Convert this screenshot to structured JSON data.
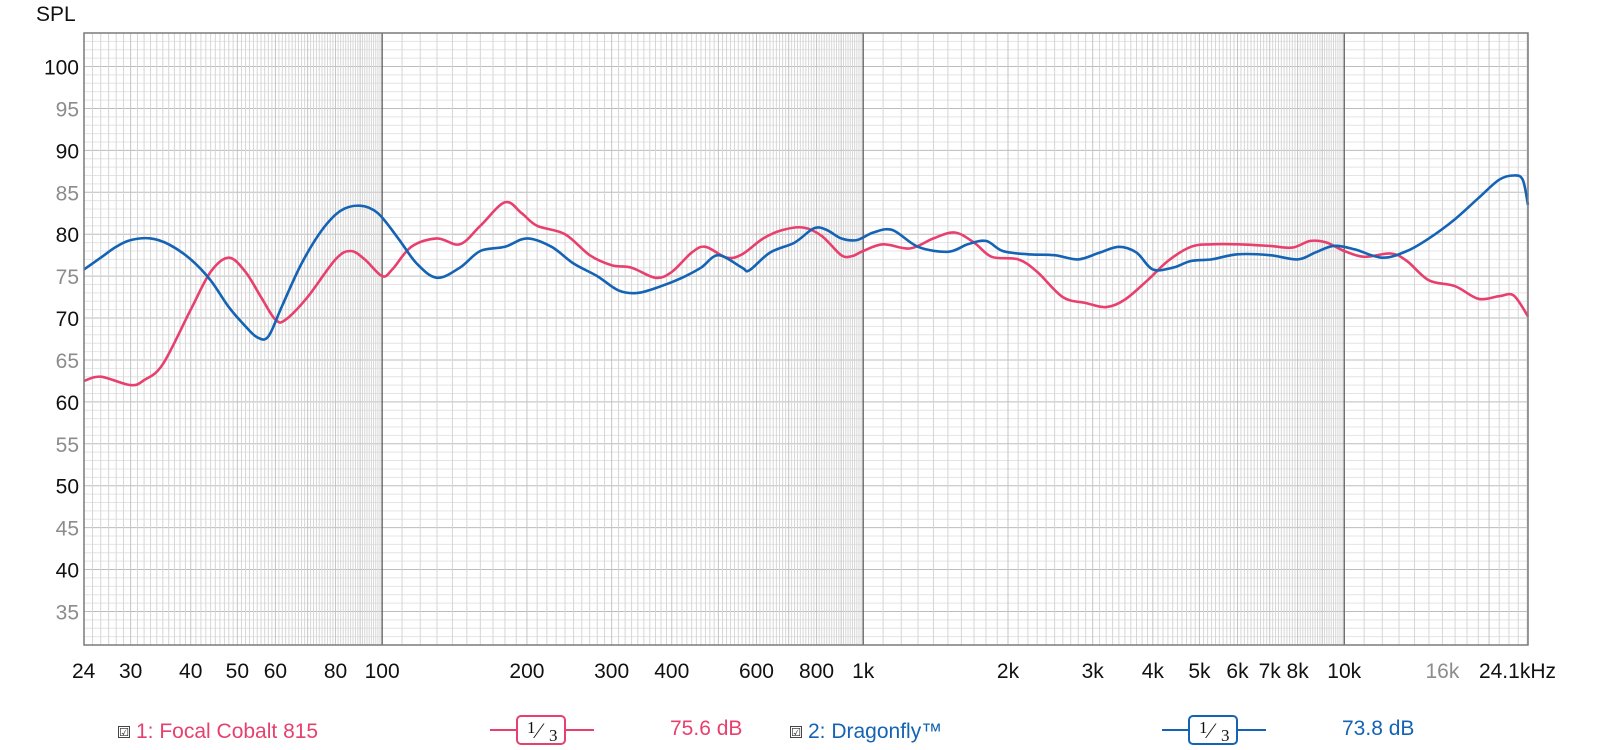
{
  "colors": {
    "series1": "#e8406e",
    "series2": "#1463b4",
    "grid_major": "#6e6e6e",
    "grid_minor": "#d6d6d6"
  },
  "chart_data": {
    "type": "line",
    "ylabel": "SPL",
    "ylim": [
      31,
      104
    ],
    "xlim": [
      24,
      24100
    ],
    "x_scale": "log",
    "x_ticks": [
      {
        "f": 24,
        "label": "24"
      },
      {
        "f": 30,
        "label": "30"
      },
      {
        "f": 40,
        "label": "40"
      },
      {
        "f": 50,
        "label": "50"
      },
      {
        "f": 60,
        "label": "60"
      },
      {
        "f": 80,
        "label": "80"
      },
      {
        "f": 100,
        "label": "100"
      },
      {
        "f": 200,
        "label": "200"
      },
      {
        "f": 300,
        "label": "300"
      },
      {
        "f": 400,
        "label": "400"
      },
      {
        "f": 600,
        "label": "600"
      },
      {
        "f": 800,
        "label": "800"
      },
      {
        "f": 1000,
        "label": "1k"
      },
      {
        "f": 2000,
        "label": "2k"
      },
      {
        "f": 3000,
        "label": "3k"
      },
      {
        "f": 4000,
        "label": "4k"
      },
      {
        "f": 5000,
        "label": "5k"
      },
      {
        "f": 6000,
        "label": "6k"
      },
      {
        "f": 7000,
        "label": "7k"
      },
      {
        "f": 8000,
        "label": "8k"
      },
      {
        "f": 10000,
        "label": "10k"
      },
      {
        "f": 16000,
        "label": "16k",
        "minor": true
      },
      {
        "f": 24100,
        "label": "24.1kHz"
      }
    ],
    "y_ticks": [
      {
        "v": 100,
        "label": "100"
      },
      {
        "v": 95,
        "label": "95",
        "minor": true
      },
      {
        "v": 90,
        "label": "90"
      },
      {
        "v": 85,
        "label": "85",
        "minor": true
      },
      {
        "v": 80,
        "label": "80"
      },
      {
        "v": 75,
        "label": "75",
        "minor": true
      },
      {
        "v": 70,
        "label": "70"
      },
      {
        "v": 65,
        "label": "65",
        "minor": true
      },
      {
        "v": 60,
        "label": "60"
      },
      {
        "v": 55,
        "label": "55",
        "minor": true
      },
      {
        "v": 50,
        "label": "50"
      },
      {
        "v": 45,
        "label": "45",
        "minor": true
      },
      {
        "v": 40,
        "label": "40"
      },
      {
        "v": 35,
        "label": "35",
        "minor": true
      }
    ],
    "series": [
      {
        "name": "1: Focal Cobalt 815",
        "smoothing": "1/3",
        "average": "75.6 dB",
        "points": [
          [
            24,
            62.5
          ],
          [
            26,
            63
          ],
          [
            30,
            62
          ],
          [
            32,
            62.6
          ],
          [
            35,
            64.5
          ],
          [
            40,
            71
          ],
          [
            44,
            75.5
          ],
          [
            48,
            77.2
          ],
          [
            52,
            75.5
          ],
          [
            56,
            72.5
          ],
          [
            60,
            69.8
          ],
          [
            63,
            69.8
          ],
          [
            70,
            72.5
          ],
          [
            80,
            77
          ],
          [
            86,
            78
          ],
          [
            92,
            77
          ],
          [
            100,
            75
          ],
          [
            105,
            75.8
          ],
          [
            115,
            78.5
          ],
          [
            130,
            79.5
          ],
          [
            145,
            78.8
          ],
          [
            160,
            81
          ],
          [
            180,
            83.8
          ],
          [
            195,
            82.5
          ],
          [
            210,
            81
          ],
          [
            240,
            80
          ],
          [
            270,
            77.5
          ],
          [
            300,
            76.3
          ],
          [
            330,
            76
          ],
          [
            370,
            74.8
          ],
          [
            400,
            75.5
          ],
          [
            440,
            77.8
          ],
          [
            470,
            78.5
          ],
          [
            520,
            77.2
          ],
          [
            560,
            77.6
          ],
          [
            620,
            79.5
          ],
          [
            680,
            80.5
          ],
          [
            750,
            80.8
          ],
          [
            820,
            79.8
          ],
          [
            900,
            77.5
          ],
          [
            950,
            77.4
          ],
          [
            1000,
            78
          ],
          [
            1100,
            78.8
          ],
          [
            1250,
            78.3
          ],
          [
            1400,
            79.5
          ],
          [
            1550,
            80.2
          ],
          [
            1700,
            79
          ],
          [
            1850,
            77.3
          ],
          [
            2100,
            77
          ],
          [
            2300,
            75.5
          ],
          [
            2600,
            72.5
          ],
          [
            2900,
            71.8
          ],
          [
            3200,
            71.3
          ],
          [
            3500,
            72.2
          ],
          [
            3900,
            74.5
          ],
          [
            4300,
            76.8
          ],
          [
            4800,
            78.5
          ],
          [
            5300,
            78.8
          ],
          [
            6000,
            78.8
          ],
          [
            7000,
            78.6
          ],
          [
            7800,
            78.4
          ],
          [
            8500,
            79.2
          ],
          [
            9200,
            79
          ],
          [
            10000,
            78
          ],
          [
            11000,
            77.3
          ],
          [
            12500,
            77.7
          ],
          [
            13500,
            76.8
          ],
          [
            15000,
            74.5
          ],
          [
            17000,
            73.8
          ],
          [
            19000,
            72.3
          ],
          [
            21000,
            72.6
          ],
          [
            22500,
            72.7
          ],
          [
            24100,
            70.2
          ]
        ]
      },
      {
        "name": "2: Dragonfly™",
        "smoothing": "1/3",
        "average": "73.8 dB",
        "points": [
          [
            24,
            75.8
          ],
          [
            26,
            77.2
          ],
          [
            28,
            78.5
          ],
          [
            30,
            79.3
          ],
          [
            33,
            79.5
          ],
          [
            36,
            78.8
          ],
          [
            40,
            77
          ],
          [
            44,
            74.5
          ],
          [
            48,
            71.3
          ],
          [
            52,
            69
          ],
          [
            55,
            67.7
          ],
          [
            58,
            67.8
          ],
          [
            62,
            71.5
          ],
          [
            68,
            76.5
          ],
          [
            75,
            80.5
          ],
          [
            82,
            82.8
          ],
          [
            90,
            83.4
          ],
          [
            98,
            82.5
          ],
          [
            108,
            79.5
          ],
          [
            118,
            76.5
          ],
          [
            130,
            74.8
          ],
          [
            145,
            76
          ],
          [
            160,
            78
          ],
          [
            180,
            78.5
          ],
          [
            200,
            79.5
          ],
          [
            225,
            78.5
          ],
          [
            250,
            76.5
          ],
          [
            280,
            75
          ],
          [
            310,
            73.3
          ],
          [
            340,
            73
          ],
          [
            380,
            73.8
          ],
          [
            420,
            74.8
          ],
          [
            460,
            76
          ],
          [
            500,
            77.5
          ],
          [
            560,
            76
          ],
          [
            580,
            75.7
          ],
          [
            640,
            77.8
          ],
          [
            720,
            79
          ],
          [
            790,
            80.7
          ],
          [
            840,
            80.5
          ],
          [
            900,
            79.5
          ],
          [
            970,
            79.3
          ],
          [
            1050,
            80.2
          ],
          [
            1150,
            80.5
          ],
          [
            1300,
            78.5
          ],
          [
            1500,
            77.9
          ],
          [
            1650,
            78.8
          ],
          [
            1800,
            79.2
          ],
          [
            1950,
            78
          ],
          [
            2200,
            77.6
          ],
          [
            2500,
            77.5
          ],
          [
            2800,
            77
          ],
          [
            3100,
            77.8
          ],
          [
            3400,
            78.5
          ],
          [
            3700,
            77.8
          ],
          [
            4000,
            75.8
          ],
          [
            4400,
            76
          ],
          [
            4800,
            76.8
          ],
          [
            5300,
            77
          ],
          [
            6000,
            77.6
          ],
          [
            7000,
            77.5
          ],
          [
            8000,
            77
          ],
          [
            8700,
            77.8
          ],
          [
            9500,
            78.6
          ],
          [
            10500,
            78.2
          ],
          [
            12000,
            77.2
          ],
          [
            13500,
            78
          ],
          [
            15000,
            79.5
          ],
          [
            17000,
            81.8
          ],
          [
            19000,
            84.3
          ],
          [
            21000,
            86.5
          ],
          [
            22500,
            87
          ],
          [
            23500,
            86.5
          ],
          [
            24100,
            83.5
          ]
        ]
      }
    ]
  },
  "legend": [
    {
      "check": "☑",
      "label": "1: Focal Cobalt 815",
      "smoothing_num": "1",
      "smoothing_den": "3",
      "average": "75.6 dB"
    },
    {
      "check": "☑",
      "label": "2: Dragonfly™",
      "smoothing_num": "1",
      "smoothing_den": "3",
      "average": "73.8 dB"
    }
  ]
}
